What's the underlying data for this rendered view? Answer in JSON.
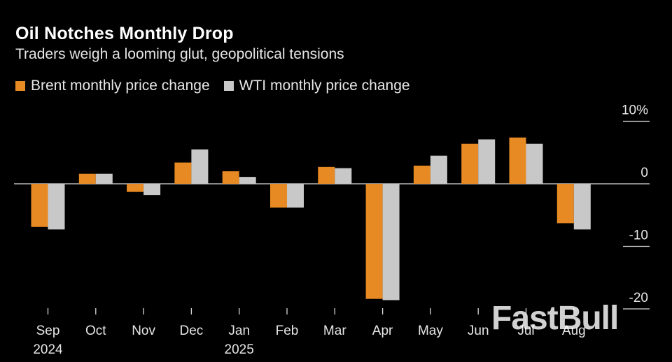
{
  "title": "Oil Notches Monthly Drop",
  "subtitle": "Traders weigh a looming glut, geopolitical tensions",
  "watermark": "FastBull",
  "chart_data": {
    "type": "bar",
    "categories": [
      "Sep",
      "Oct",
      "Nov",
      "Dec",
      "Jan",
      "Feb",
      "Mar",
      "Apr",
      "May",
      "Jun",
      "Jul",
      "Aug"
    ],
    "category_years": [
      "2024",
      "",
      "",
      "",
      "2025",
      "",
      "",
      "",
      "",
      "",
      "",
      ""
    ],
    "series": [
      {
        "name": "Brent monthly price change",
        "color": "#e88a23",
        "values": [
          -6.9,
          1.6,
          -1.3,
          3.4,
          2.0,
          -3.8,
          2.7,
          -18.4,
          2.9,
          6.4,
          7.4,
          -6.3
        ]
      },
      {
        "name": "WTI monthly price change",
        "color": "#c8c8c8",
        "values": [
          -7.3,
          1.6,
          -1.8,
          5.5,
          1.1,
          -3.8,
          2.5,
          -18.6,
          4.5,
          7.1,
          6.4,
          -7.3
        ]
      }
    ],
    "yticks": [
      {
        "value": 10,
        "label": "10%"
      },
      {
        "value": 0,
        "label": "0"
      },
      {
        "value": -10,
        "label": "-10"
      },
      {
        "value": -20,
        "label": "-20"
      }
    ],
    "ylim": [
      -20,
      10
    ],
    "legend": "top-left",
    "grid": false
  }
}
